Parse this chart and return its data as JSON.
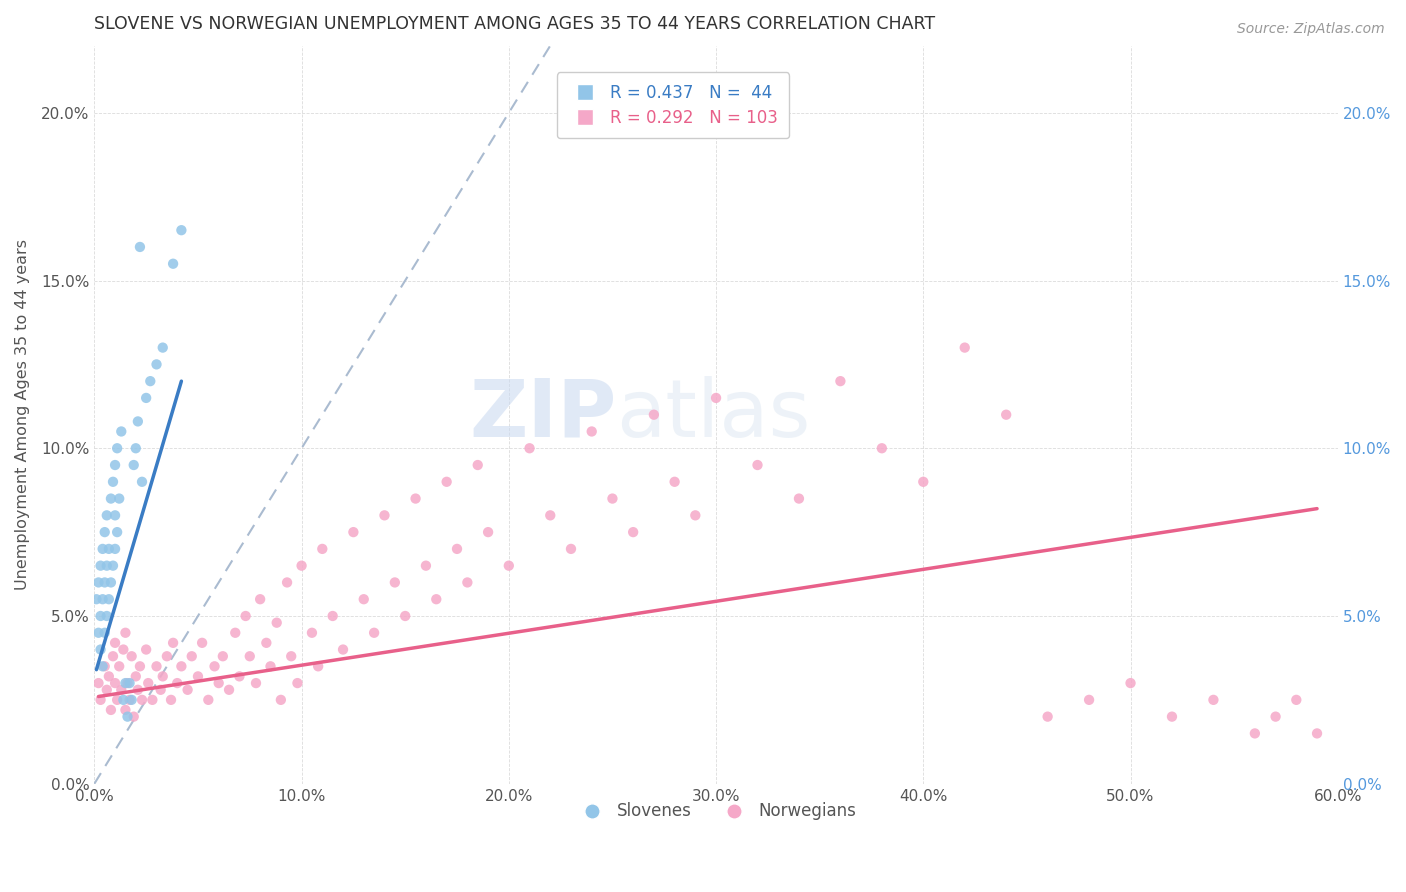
{
  "title": "SLOVENE VS NORWEGIAN UNEMPLOYMENT AMONG AGES 35 TO 44 YEARS CORRELATION CHART",
  "source": "Source: ZipAtlas.com",
  "ylabel": "Unemployment Among Ages 35 to 44 years",
  "xlim": [
    0.0,
    0.6
  ],
  "ylim": [
    0.0,
    0.22
  ],
  "xticks": [
    0.0,
    0.1,
    0.2,
    0.3,
    0.4,
    0.5,
    0.6
  ],
  "xtick_labels": [
    "0.0%",
    "10.0%",
    "20.0%",
    "30.0%",
    "40.0%",
    "50.0%",
    "60.0%"
  ],
  "yticks": [
    0.0,
    0.05,
    0.1,
    0.15,
    0.2
  ],
  "ytick_labels": [
    "0.0%",
    "5.0%",
    "10.0%",
    "15.0%",
    "20.0%"
  ],
  "legend_slovene_R": 0.437,
  "legend_slovene_N": 44,
  "legend_norwegian_R": 0.292,
  "legend_norwegian_N": 103,
  "slovene_color": "#92C5E8",
  "norwegian_color": "#F5A8C8",
  "slovene_trend_color": "#3A7CC4",
  "norwegian_trend_color": "#E8608A",
  "diagonal_color": "#AABBD0",
  "background_color": "#FFFFFF",
  "slovene_x": [
    0.001,
    0.002,
    0.002,
    0.003,
    0.003,
    0.003,
    0.004,
    0.004,
    0.004,
    0.005,
    0.005,
    0.005,
    0.006,
    0.006,
    0.006,
    0.007,
    0.007,
    0.008,
    0.008,
    0.009,
    0.009,
    0.01,
    0.01,
    0.01,
    0.011,
    0.011,
    0.012,
    0.013,
    0.014,
    0.015,
    0.016,
    0.017,
    0.018,
    0.019,
    0.02,
    0.021,
    0.022,
    0.023,
    0.025,
    0.027,
    0.03,
    0.033,
    0.038,
    0.042
  ],
  "slovene_y": [
    0.055,
    0.045,
    0.06,
    0.04,
    0.05,
    0.065,
    0.035,
    0.055,
    0.07,
    0.045,
    0.06,
    0.075,
    0.05,
    0.065,
    0.08,
    0.055,
    0.07,
    0.06,
    0.085,
    0.065,
    0.09,
    0.07,
    0.08,
    0.095,
    0.075,
    0.1,
    0.085,
    0.105,
    0.025,
    0.03,
    0.02,
    0.03,
    0.025,
    0.095,
    0.1,
    0.108,
    0.16,
    0.09,
    0.115,
    0.12,
    0.125,
    0.13,
    0.155,
    0.165
  ],
  "norwegian_x": [
    0.002,
    0.003,
    0.005,
    0.006,
    0.007,
    0.008,
    0.009,
    0.01,
    0.01,
    0.011,
    0.012,
    0.013,
    0.014,
    0.015,
    0.015,
    0.016,
    0.017,
    0.018,
    0.019,
    0.02,
    0.021,
    0.022,
    0.023,
    0.025,
    0.026,
    0.028,
    0.03,
    0.032,
    0.033,
    0.035,
    0.037,
    0.038,
    0.04,
    0.042,
    0.045,
    0.047,
    0.05,
    0.052,
    0.055,
    0.058,
    0.06,
    0.062,
    0.065,
    0.068,
    0.07,
    0.073,
    0.075,
    0.078,
    0.08,
    0.083,
    0.085,
    0.088,
    0.09,
    0.093,
    0.095,
    0.098,
    0.1,
    0.105,
    0.108,
    0.11,
    0.115,
    0.12,
    0.125,
    0.13,
    0.135,
    0.14,
    0.145,
    0.15,
    0.155,
    0.16,
    0.165,
    0.17,
    0.175,
    0.18,
    0.185,
    0.19,
    0.2,
    0.21,
    0.22,
    0.23,
    0.24,
    0.25,
    0.26,
    0.27,
    0.28,
    0.29,
    0.3,
    0.32,
    0.34,
    0.36,
    0.38,
    0.4,
    0.42,
    0.44,
    0.46,
    0.48,
    0.5,
    0.52,
    0.54,
    0.56,
    0.57,
    0.58,
    0.59
  ],
  "norwegian_y": [
    0.03,
    0.025,
    0.035,
    0.028,
    0.032,
    0.022,
    0.038,
    0.03,
    0.042,
    0.025,
    0.035,
    0.028,
    0.04,
    0.022,
    0.045,
    0.03,
    0.025,
    0.038,
    0.02,
    0.032,
    0.028,
    0.035,
    0.025,
    0.04,
    0.03,
    0.025,
    0.035,
    0.028,
    0.032,
    0.038,
    0.025,
    0.042,
    0.03,
    0.035,
    0.028,
    0.038,
    0.032,
    0.042,
    0.025,
    0.035,
    0.03,
    0.038,
    0.028,
    0.045,
    0.032,
    0.05,
    0.038,
    0.03,
    0.055,
    0.042,
    0.035,
    0.048,
    0.025,
    0.06,
    0.038,
    0.03,
    0.065,
    0.045,
    0.035,
    0.07,
    0.05,
    0.04,
    0.075,
    0.055,
    0.045,
    0.08,
    0.06,
    0.05,
    0.085,
    0.065,
    0.055,
    0.09,
    0.07,
    0.06,
    0.095,
    0.075,
    0.065,
    0.1,
    0.08,
    0.07,
    0.105,
    0.085,
    0.075,
    0.11,
    0.09,
    0.08,
    0.115,
    0.095,
    0.085,
    0.12,
    0.1,
    0.09,
    0.13,
    0.11,
    0.02,
    0.025,
    0.03,
    0.02,
    0.025,
    0.015,
    0.02,
    0.025,
    0.015
  ],
  "slovene_trend_x": [
    0.001,
    0.042
  ],
  "slovene_trend_y": [
    0.034,
    0.12
  ],
  "norwegian_trend_x": [
    0.002,
    0.59
  ],
  "norwegian_trend_y": [
    0.026,
    0.082
  ]
}
